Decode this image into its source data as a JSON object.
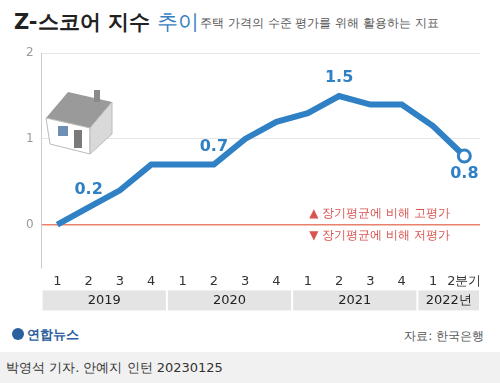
{
  "chart_data": {
    "type": "line",
    "title": "Z-스코어 지수 추이",
    "subtitle": "주택 가격의 수준 평가를 위해 활용하는 지표",
    "categories": [
      "1",
      "2",
      "3",
      "4",
      "1",
      "2",
      "3",
      "4",
      "1",
      "2",
      "3",
      "4",
      "1",
      "2분기"
    ],
    "x_groups": [
      {
        "label": "2019",
        "count": 4
      },
      {
        "label": "2020",
        "count": 4
      },
      {
        "label": "2021",
        "count": 4
      },
      {
        "label": "2022년",
        "count": 2
      }
    ],
    "values": [
      0,
      0.2,
      0.4,
      0.7,
      0.7,
      0.7,
      1.0,
      1.2,
      1.3,
      1.5,
      1.4,
      1.4,
      1.15,
      0.8
    ],
    "value_labels": [
      null,
      "0.2",
      null,
      null,
      null,
      "0.7",
      null,
      null,
      null,
      "1.5",
      null,
      null,
      null,
      "0.8"
    ],
    "color": "#2f80c4",
    "ylim": [
      -0.5,
      2
    ],
    "yticks": [
      0,
      1,
      2
    ],
    "grid": true,
    "annotations": [
      "▲ 장기평균에 비해 고평가",
      "▼ 장기평균에 비해 저평가"
    ],
    "source": "자료: 한국은행",
    "logo": "연합뉴스",
    "credit": "박영석 기자. 안예지 인턴 20230125"
  }
}
